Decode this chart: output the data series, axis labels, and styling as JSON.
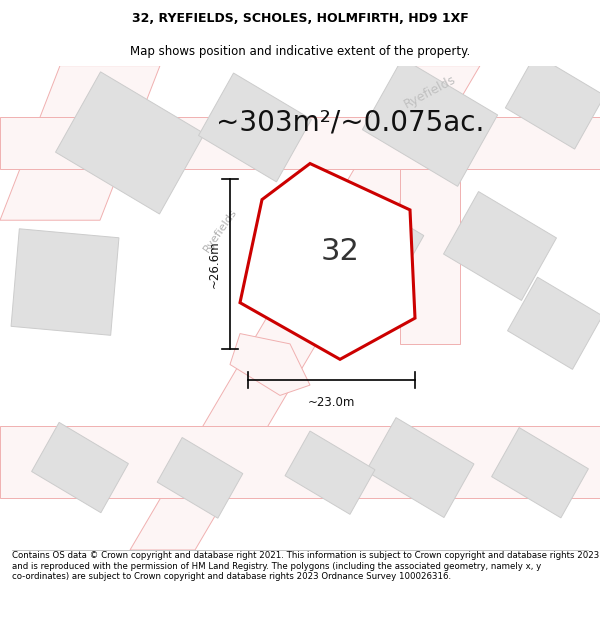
{
  "title": "32, RYEFIELDS, SCHOLES, HOLMFIRTH, HD9 1XF",
  "subtitle": "Map shows position and indicative extent of the property.",
  "area_text": "~303m²/~0.075ac.",
  "dim_width": "~23.0m",
  "dim_height": "~26.6m",
  "plot_number": "32",
  "footer": "Contains OS data © Crown copyright and database right 2021. This information is subject to Crown copyright and database rights 2023 and is reproduced with the permission of HM Land Registry. The polygons (including the associated geometry, namely x, y co-ordinates) are subject to Crown copyright and database rights 2023 Ordnance Survey 100026316.",
  "bg_color": "#ffffff",
  "road_color": "#f0b0b0",
  "road_fill": "#fdf5f5",
  "building_color": "#e0e0e0",
  "building_edge": "#cccccc",
  "highlight_color": "#cc0000",
  "highlight_fill": "#ffffff",
  "title_fontsize": 9,
  "subtitle_fontsize": 8.5,
  "area_fontsize": 20,
  "plot_label_fontsize": 22
}
